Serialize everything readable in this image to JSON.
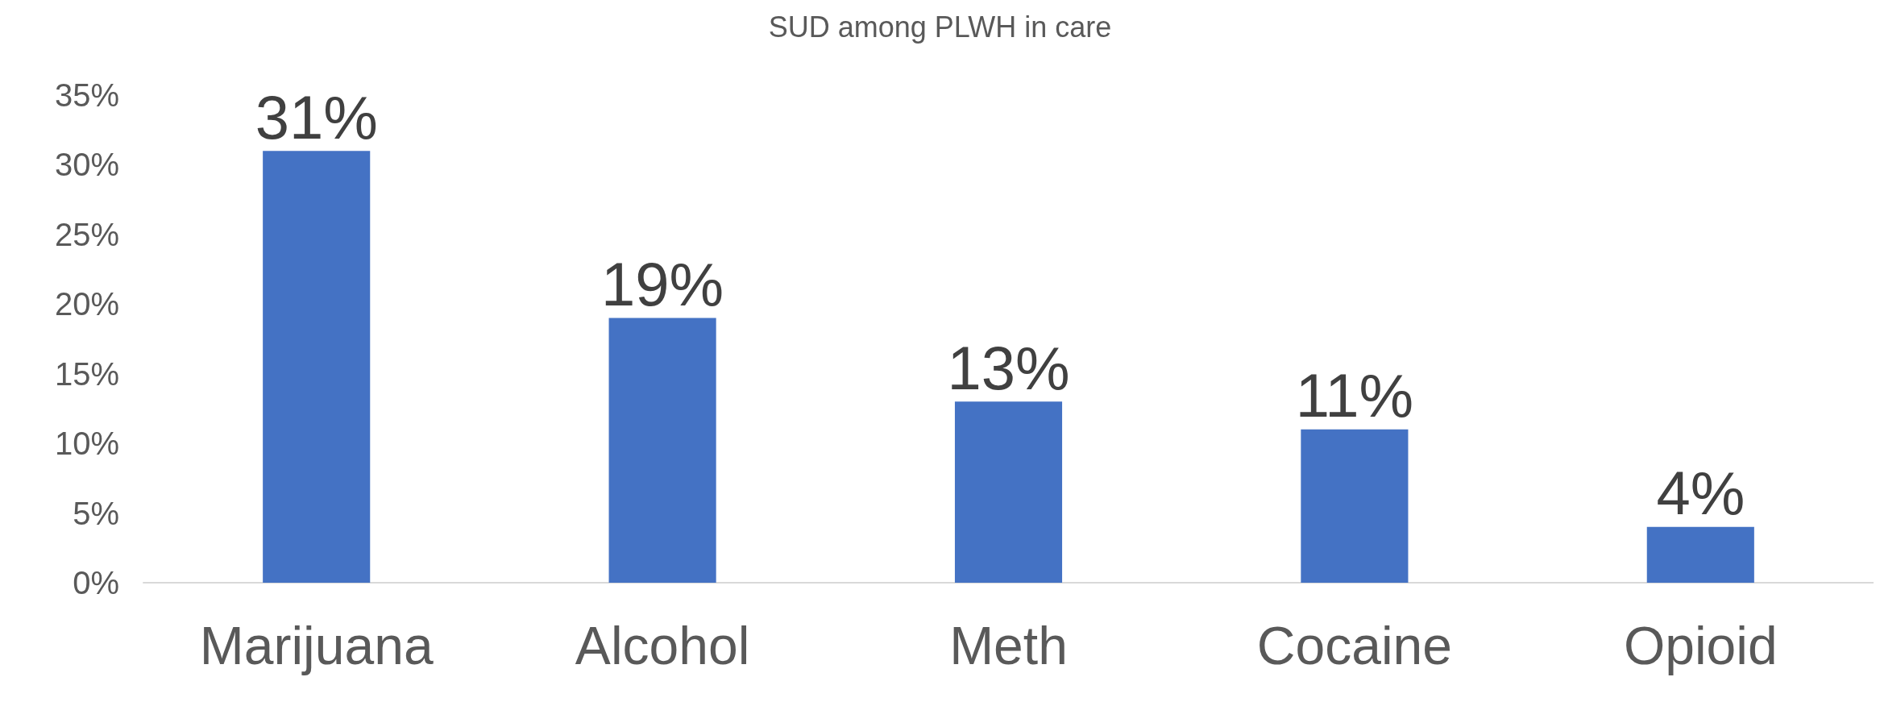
{
  "chart_data": {
    "type": "bar",
    "title": "SUD among PLWH in care",
    "categories": [
      "Marijuana",
      "Alcohol",
      "Meth",
      "Cocaine",
      "Opioid"
    ],
    "values": [
      31,
      19,
      13,
      11,
      4
    ],
    "value_labels": [
      "31%",
      "19%",
      "13%",
      "11%",
      "4%"
    ],
    "color": "#4472c4",
    "ylim": [
      0,
      35
    ],
    "yticks": [
      {
        "value": 0,
        "label": "0%"
      },
      {
        "value": 5,
        "label": "5%"
      },
      {
        "value": 10,
        "label": "10%"
      },
      {
        "value": 15,
        "label": "15%"
      },
      {
        "value": 20,
        "label": "20%"
      },
      {
        "value": 25,
        "label": "25%"
      },
      {
        "value": 30,
        "label": "30%"
      },
      {
        "value": 35,
        "label": "35%"
      }
    ],
    "grid": false
  }
}
